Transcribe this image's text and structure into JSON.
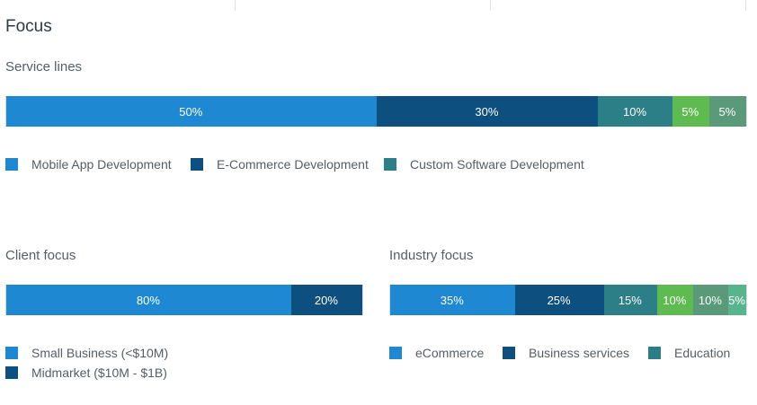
{
  "colors": {
    "blue": "#1e88d2",
    "navy": "#0d4f7e",
    "teal": "#2d7f87",
    "green": "#5dbb4f",
    "sage": "#5a9a7a",
    "mint": "#57b48d"
  },
  "focus_title": "Focus",
  "service_lines": {
    "title": "Service lines",
    "segments": [
      {
        "label": "50%",
        "value": 50,
        "color": "#1e88d2"
      },
      {
        "label": "30%",
        "value": 30,
        "color": "#0d4f7e"
      },
      {
        "label": "10%",
        "value": 10,
        "color": "#2d7f87"
      },
      {
        "label": "5%",
        "value": 5,
        "color": "#5dbb4f"
      },
      {
        "label": "5%",
        "value": 5,
        "color": "#5a9a7a"
      }
    ],
    "legend": [
      {
        "label": "Mobile App Development",
        "color": "#1e88d2"
      },
      {
        "label": "E-Commerce Development",
        "color": "#0d4f7e"
      },
      {
        "label": "Custom Software Development",
        "color": "#2d7f87"
      }
    ]
  },
  "client_focus": {
    "title": "Client focus",
    "segments": [
      {
        "label": "80%",
        "value": 80,
        "color": "#1e88d2"
      },
      {
        "label": "20%",
        "value": 20,
        "color": "#0d4f7e"
      }
    ],
    "legend": [
      {
        "label": "Small Business (<$10M)",
        "color": "#1e88d2"
      },
      {
        "label": "Midmarket ($10M - $1B)",
        "color": "#0d4f7e"
      }
    ]
  },
  "industry_focus": {
    "title": "Industry focus",
    "segments": [
      {
        "label": "35%",
        "value": 35,
        "color": "#1e88d2"
      },
      {
        "label": "25%",
        "value": 25,
        "color": "#0d4f7e"
      },
      {
        "label": "15%",
        "value": 15,
        "color": "#2d7f87"
      },
      {
        "label": "10%",
        "value": 10,
        "color": "#5dbb4f"
      },
      {
        "label": "10%",
        "value": 10,
        "color": "#5a9a7a"
      },
      {
        "label": "5%",
        "value": 5,
        "color": "#57b48d"
      }
    ],
    "legend": [
      {
        "label": "eCommerce",
        "color": "#1e88d2"
      },
      {
        "label": "Business services",
        "color": "#0d4f7e"
      },
      {
        "label": "Education",
        "color": "#2d7f87"
      }
    ]
  }
}
